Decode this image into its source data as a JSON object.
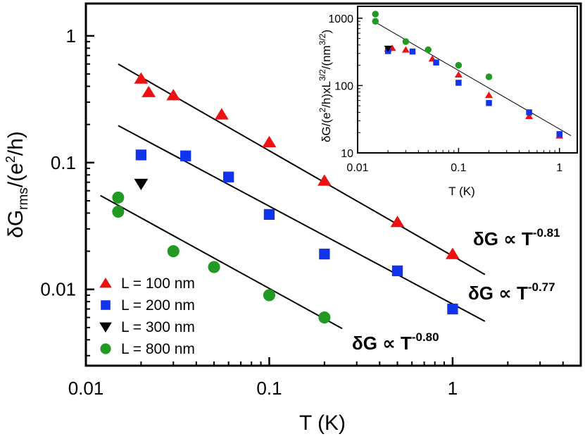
{
  "chart_data": [
    {
      "type": "scatter",
      "scale": "log-log",
      "xlabel": "T (K)",
      "ylabel": {
        "prefix": "δG",
        "sub": "rms",
        "mid": "/(e",
        "sup": "2",
        "suffix": "/h)"
      },
      "xlim": [
        0.01,
        5
      ],
      "ylim": [
        0.0025,
        1.8
      ],
      "x_ticks": [
        {
          "value": 0.01,
          "label": "0.01"
        },
        {
          "value": 0.1,
          "label": "0.1"
        },
        {
          "value": 1,
          "label": "1"
        }
      ],
      "y_ticks": [
        {
          "value": 0.01,
          "label": "0.01"
        },
        {
          "value": 0.1,
          "label": "0.1"
        },
        {
          "value": 1,
          "label": "1"
        }
      ],
      "series": [
        {
          "name": "L = 100 nm",
          "marker": "triangle-up",
          "color": "#ee1111",
          "x": [
            0.02,
            0.022,
            0.03,
            0.055,
            0.1,
            0.2,
            0.5,
            1.0
          ],
          "y": [
            0.46,
            0.36,
            0.34,
            0.24,
            0.145,
            0.072,
            0.034,
            0.019
          ]
        },
        {
          "name": "L = 200 nm",
          "marker": "square",
          "color": "#1133ee",
          "x": [
            0.02,
            0.035,
            0.06,
            0.1,
            0.2,
            0.5,
            1.0
          ],
          "y": [
            0.115,
            0.113,
            0.077,
            0.039,
            0.019,
            0.014,
            0.007
          ]
        },
        {
          "name": "L = 300 nm",
          "marker": "triangle-down",
          "color": "#000000",
          "x": [
            0.02
          ],
          "y": [
            0.068
          ]
        },
        {
          "name": "L = 800 nm",
          "marker": "circle",
          "color": "#229922",
          "x": [
            0.015,
            0.015,
            0.03,
            0.05,
            0.1,
            0.2
          ],
          "y": [
            0.053,
            0.041,
            0.02,
            0.015,
            0.009,
            0.006
          ]
        }
      ],
      "fits": [
        {
          "label": "δG ∝ T",
          "exponent": "-0.81",
          "x": [
            0.015,
            1.5
          ],
          "y": [
            0.6,
            0.0131
          ]
        },
        {
          "label": "δG ∝ T",
          "exponent": "-0.77",
          "x": [
            0.015,
            1.5
          ],
          "y": [
            0.196,
            0.0056
          ]
        },
        {
          "label": "δG ∝ T",
          "exponent": "-0.80",
          "x": [
            0.012,
            0.25
          ],
          "y": [
            0.055,
            0.0049
          ]
        }
      ]
    },
    {
      "type": "scatter",
      "scale": "log-log",
      "inset": true,
      "xlabel": "T (K)",
      "ylabel": {
        "prefix": "δG/(e",
        "sup1": "2",
        "mid": "/h)xL",
        "sup2": "3/2",
        "mid2": "/(nm",
        "sup3": "3/2",
        "suffix": ")"
      },
      "xlim": [
        0.01,
        1.5
      ],
      "ylim": [
        10,
        1500
      ],
      "x_ticks": [
        {
          "value": 0.01,
          "label": "0.01"
        },
        {
          "value": 0.1,
          "label": "0.1"
        },
        {
          "value": 1,
          "label": "1"
        }
      ],
      "y_ticks": [
        {
          "value": 10,
          "label": "10"
        },
        {
          "value": 100,
          "label": "100"
        },
        {
          "value": 1000,
          "label": "1000"
        }
      ],
      "series": [
        {
          "name": "L = 100 nm",
          "marker": "triangle-up",
          "color": "#ee1111",
          "x": [
            0.02,
            0.022,
            0.03,
            0.055,
            0.1,
            0.2,
            0.5,
            1.0
          ],
          "y": [
            350,
            360,
            340,
            250,
            145,
            72,
            35,
            18
          ]
        },
        {
          "name": "L = 200 nm",
          "marker": "square",
          "color": "#1133ee",
          "x": [
            0.02,
            0.035,
            0.06,
            0.1,
            0.2,
            0.5,
            1.0
          ],
          "y": [
            325,
            320,
            220,
            110,
            55,
            40,
            19
          ]
        },
        {
          "name": "L = 300 nm",
          "marker": "triangle-down",
          "color": "#000000",
          "x": [
            0.02
          ],
          "y": [
            355
          ]
        },
        {
          "name": "L = 800 nm",
          "marker": "circle",
          "color": "#229922",
          "x": [
            0.015,
            0.015,
            0.03,
            0.05,
            0.1,
            0.2
          ],
          "y": [
            1150,
            900,
            450,
            340,
            200,
            135
          ]
        }
      ],
      "fits": [
        {
          "label": "",
          "exponent": "",
          "x": [
            0.015,
            1.3
          ],
          "y": [
            870,
            18
          ]
        }
      ]
    }
  ]
}
